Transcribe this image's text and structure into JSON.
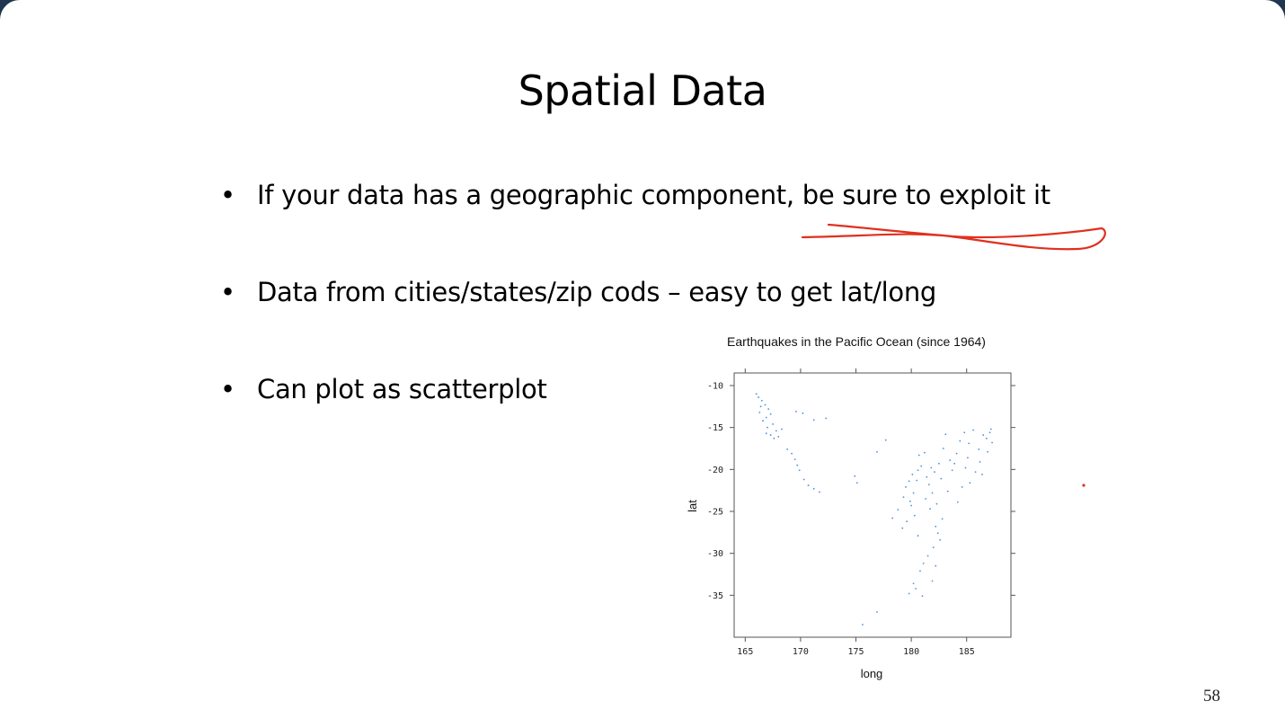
{
  "slide": {
    "title": "Spatial Data",
    "bullets": [
      "If your data has a geographic component, be sure to exploit it",
      "Data from cities/states/zip cods – easy to get lat/long",
      "Can plot as scatterplot"
    ],
    "page_number": "58",
    "bullet_symbol": "•"
  },
  "annotations": {
    "ink_color": "#e0301e"
  },
  "chart_data": {
    "type": "scatter",
    "title": "Earthquakes in the Pacific Ocean (since 1964)",
    "xlabel": "long",
    "ylabel": "lat",
    "xlim": [
      164,
      189
    ],
    "ylim": [
      -40,
      -8.5
    ],
    "xticks": [
      165,
      170,
      175,
      180,
      185
    ],
    "yticks": [
      -10,
      -15,
      -20,
      -25,
      -30,
      -35
    ],
    "grid": false,
    "point_color": "#4a90d9",
    "points": [
      [
        166.0,
        -11.0
      ],
      [
        166.2,
        -11.4
      ],
      [
        166.5,
        -11.8
      ],
      [
        166.4,
        -12.5
      ],
      [
        166.8,
        -12.3
      ],
      [
        167.1,
        -12.8
      ],
      [
        166.3,
        -13.2
      ],
      [
        166.9,
        -13.8
      ],
      [
        167.3,
        -13.4
      ],
      [
        166.6,
        -14.2
      ],
      [
        167.5,
        -14.6
      ],
      [
        167.0,
        -15.0
      ],
      [
        167.8,
        -15.4
      ],
      [
        167.3,
        -15.9
      ],
      [
        168.0,
        -16.1
      ],
      [
        168.3,
        -15.2
      ],
      [
        166.9,
        -15.7
      ],
      [
        167.6,
        -16.3
      ],
      [
        168.8,
        -17.6
      ],
      [
        169.2,
        -18.1
      ],
      [
        169.5,
        -18.8
      ],
      [
        169.7,
        -19.5
      ],
      [
        169.9,
        -20.1
      ],
      [
        170.3,
        -21.2
      ],
      [
        170.7,
        -21.9
      ],
      [
        171.2,
        -22.3
      ],
      [
        171.7,
        -22.7
      ],
      [
        169.6,
        -13.1
      ],
      [
        170.2,
        -13.3
      ],
      [
        171.2,
        -14.1
      ],
      [
        172.3,
        -13.9
      ],
      [
        174.9,
        -20.8
      ],
      [
        175.1,
        -21.6
      ],
      [
        176.9,
        -17.9
      ],
      [
        177.7,
        -16.5
      ],
      [
        178.3,
        -25.8
      ],
      [
        178.8,
        -24.8
      ],
      [
        179.3,
        -23.3
      ],
      [
        179.5,
        -22.1
      ],
      [
        179.8,
        -21.4
      ],
      [
        179.9,
        -23.8
      ],
      [
        180.0,
        -24.3
      ],
      [
        180.2,
        -22.8
      ],
      [
        180.5,
        -21.3
      ],
      [
        180.6,
        -20.1
      ],
      [
        180.9,
        -19.6
      ],
      [
        180.7,
        -18.3
      ],
      [
        181.2,
        -18.0
      ],
      [
        181.4,
        -20.9
      ],
      [
        181.6,
        -21.8
      ],
      [
        181.8,
        -19.8
      ],
      [
        181.9,
        -22.8
      ],
      [
        182.1,
        -20.3
      ],
      [
        182.3,
        -24.1
      ],
      [
        182.5,
        -19.3
      ],
      [
        182.7,
        -21.1
      ],
      [
        182.8,
        -25.9
      ],
      [
        182.2,
        -26.8
      ],
      [
        182.4,
        -27.6
      ],
      [
        182.6,
        -28.4
      ],
      [
        182.0,
        -29.3
      ],
      [
        181.5,
        -30.3
      ],
      [
        181.1,
        -31.2
      ],
      [
        180.8,
        -32.1
      ],
      [
        180.2,
        -33.6
      ],
      [
        180.4,
        -34.2
      ],
      [
        179.8,
        -34.8
      ],
      [
        181.0,
        -35.1
      ],
      [
        176.9,
        -37.0
      ],
      [
        175.6,
        -38.5
      ],
      [
        183.3,
        -22.6
      ],
      [
        183.7,
        -20.1
      ],
      [
        184.1,
        -18.1
      ],
      [
        184.4,
        -16.6
      ],
      [
        184.8,
        -15.6
      ],
      [
        185.2,
        -16.9
      ],
      [
        185.6,
        -15.3
      ],
      [
        186.1,
        -17.6
      ],
      [
        186.5,
        -15.9
      ],
      [
        186.8,
        -16.3
      ],
      [
        187.1,
        -15.6
      ],
      [
        187.3,
        -16.8
      ],
      [
        186.2,
        -19.1
      ],
      [
        185.8,
        -20.3
      ],
      [
        185.3,
        -21.6
      ],
      [
        184.6,
        -22.1
      ],
      [
        184.2,
        -23.9
      ],
      [
        183.9,
        -19.3
      ],
      [
        185.1,
        -18.6
      ],
      [
        186.4,
        -20.6
      ],
      [
        186.9,
        -17.9
      ],
      [
        187.2,
        -15.2
      ],
      [
        180.3,
        -25.5
      ],
      [
        179.6,
        -26.2
      ],
      [
        181.3,
        -23.5
      ],
      [
        182.9,
        -17.5
      ],
      [
        183.5,
        -18.9
      ],
      [
        184.9,
        -19.8
      ],
      [
        180.1,
        -20.6
      ],
      [
        181.7,
        -24.7
      ],
      [
        182.2,
        -31.5
      ],
      [
        181.9,
        -33.3
      ],
      [
        179.2,
        -27.0
      ],
      [
        180.6,
        -27.9
      ],
      [
        183.1,
        -15.8
      ]
    ]
  }
}
